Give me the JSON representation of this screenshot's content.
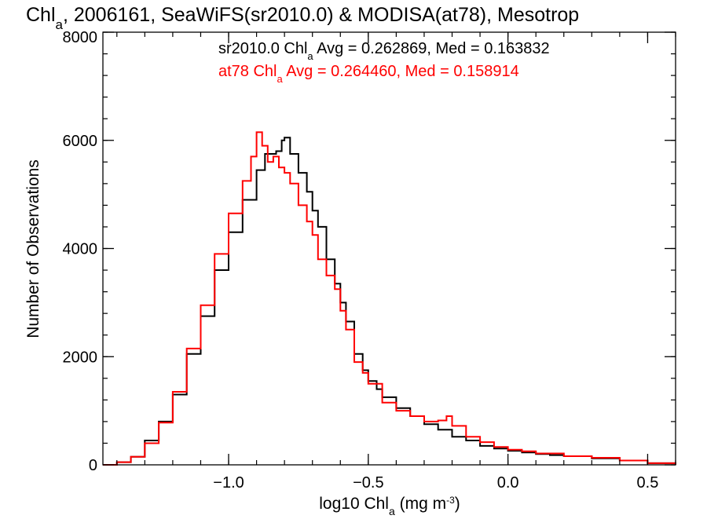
{
  "chart_data": {
    "type": "line",
    "title": "Chl",
    "title_sub": "a",
    "title_rest": ", 2006161, SeaWiFS(sr2010.0) & MODISA(at78), Mesotrop",
    "xlabel_pre": "log10 Chl",
    "xlabel_sub": "a",
    "xlabel_mid": " (mg m",
    "xlabel_sup": "-3",
    "xlabel_post": ")",
    "ylabel": "Number of Observations",
    "xlim": [
      -1.45,
      0.6
    ],
    "ylim": [
      0,
      8000
    ],
    "x_ticks": [
      -1.0,
      -0.5,
      0.0,
      0.5
    ],
    "x_tick_labels": [
      "−1.0",
      "−0.5",
      "0.0",
      "0.5"
    ],
    "y_ticks": [
      0,
      2000,
      4000,
      6000,
      8000
    ],
    "y_tick_labels": [
      "0",
      "2000",
      "4000",
      "6000",
      "8000"
    ],
    "step": true,
    "legend": [
      {
        "pre": "sr2010.0 Chl",
        "sub": "a",
        "post": " Avg = 0.262869, Med = 0.163832",
        "color": "#000000"
      },
      {
        "pre": "at78 Chl",
        "sub": "a",
        "post": " Avg = 0.264460, Med = 0.158914",
        "color": "#ff0000"
      }
    ],
    "series": [
      {
        "color": "#000000",
        "x": [
          -1.45,
          -1.4,
          -1.35,
          -1.3,
          -1.25,
          -1.2,
          -1.15,
          -1.1,
          -1.05,
          -1.0,
          -0.95,
          -0.9,
          -0.87,
          -0.85,
          -0.83,
          -0.81,
          -0.8,
          -0.78,
          -0.75,
          -0.72,
          -0.7,
          -0.68,
          -0.65,
          -0.62,
          -0.6,
          -0.58,
          -0.55,
          -0.52,
          -0.5,
          -0.47,
          -0.45,
          -0.4,
          -0.35,
          -0.3,
          -0.25,
          -0.2,
          -0.15,
          -0.1,
          -0.05,
          0.0,
          0.05,
          0.1,
          0.15,
          0.2,
          0.3,
          0.4,
          0.5,
          0.6
        ],
        "y": [
          0,
          50,
          150,
          450,
          800,
          1300,
          2050,
          2750,
          3600,
          4300,
          4900,
          5450,
          5750,
          5750,
          5800,
          6000,
          6050,
          5750,
          5400,
          5050,
          4700,
          4400,
          3800,
          3350,
          3000,
          2650,
          2050,
          1750,
          1550,
          1400,
          1250,
          1050,
          900,
          750,
          650,
          520,
          450,
          350,
          300,
          260,
          230,
          200,
          180,
          160,
          120,
          80,
          30,
          0
        ]
      },
      {
        "color": "#ff0000",
        "x": [
          -1.45,
          -1.4,
          -1.35,
          -1.3,
          -1.25,
          -1.2,
          -1.15,
          -1.1,
          -1.05,
          -1.0,
          -0.95,
          -0.92,
          -0.9,
          -0.88,
          -0.86,
          -0.84,
          -0.82,
          -0.8,
          -0.78,
          -0.75,
          -0.72,
          -0.7,
          -0.68,
          -0.65,
          -0.62,
          -0.6,
          -0.58,
          -0.55,
          -0.52,
          -0.5,
          -0.45,
          -0.4,
          -0.35,
          -0.3,
          -0.25,
          -0.22,
          -0.2,
          -0.15,
          -0.1,
          -0.05,
          0.0,
          0.05,
          0.1,
          0.2,
          0.3,
          0.4,
          0.5,
          0.6
        ],
        "y": [
          0,
          50,
          150,
          400,
          780,
          1350,
          2150,
          2950,
          3900,
          4650,
          5250,
          5700,
          6150,
          5900,
          5600,
          5700,
          5500,
          5400,
          5200,
          4800,
          4500,
          4250,
          3800,
          3500,
          3250,
          2850,
          2500,
          1900,
          1700,
          1500,
          1150,
          1000,
          900,
          800,
          820,
          900,
          720,
          520,
          420,
          330,
          280,
          250,
          210,
          160,
          130,
          80,
          30,
          0
        ]
      }
    ]
  }
}
